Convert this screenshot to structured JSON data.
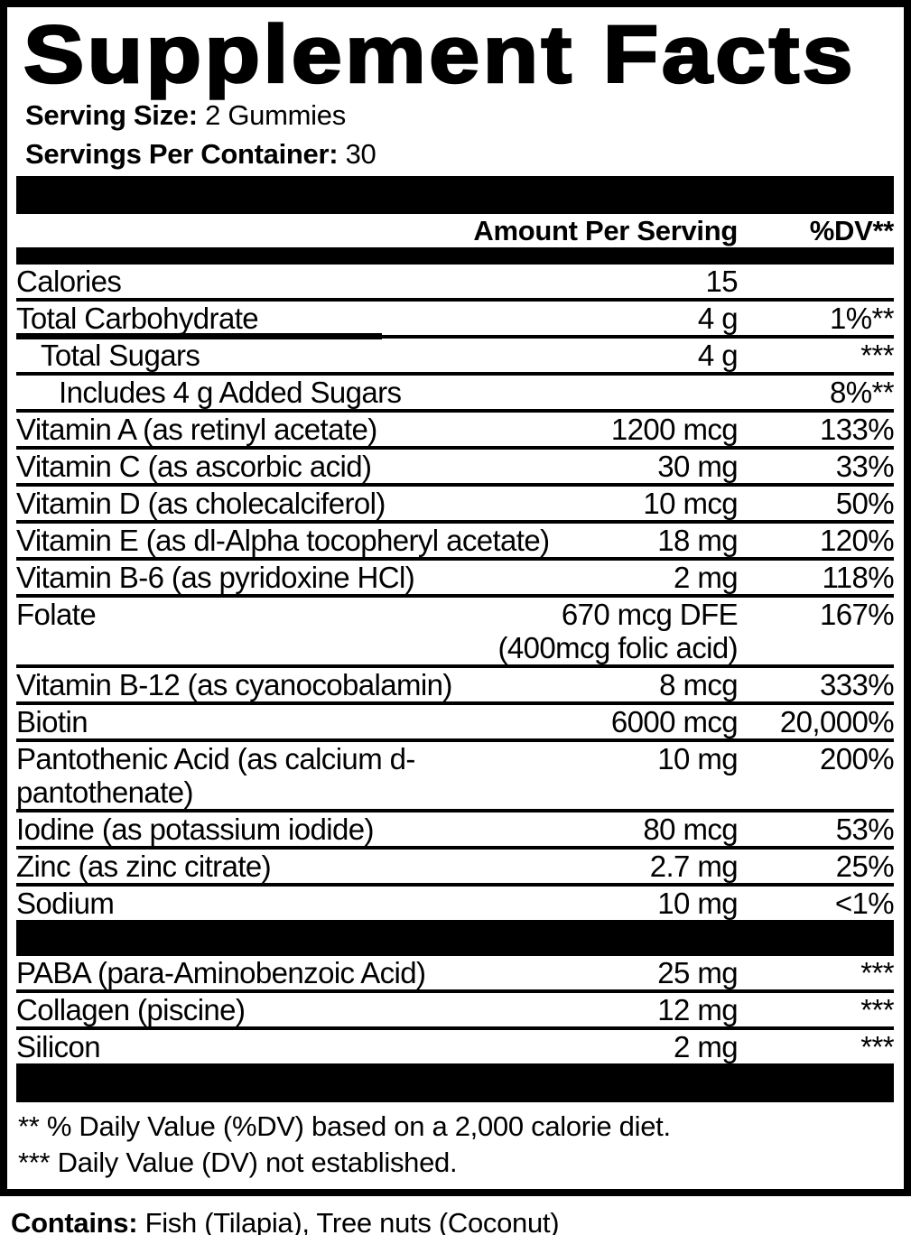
{
  "title": "Supplement Facts",
  "serving": {
    "size_label": "Serving Size:",
    "size_value": "2 Gummies",
    "per_container_label": "Servings Per Container:",
    "per_container_value": "30"
  },
  "columns": {
    "amount_header": "Amount Per Serving",
    "dv_header": "%DV**"
  },
  "nutrient_rows": [
    {
      "label": "Calories",
      "amount": "15",
      "dv": "",
      "indent": 0
    },
    {
      "label": "Total Carbohydrate",
      "amount": "4 g",
      "dv": "1%**",
      "indent": 0,
      "partial_underline": true
    },
    {
      "label": "Total Sugars",
      "amount": "4 g",
      "dv": "***",
      "indent": 1
    },
    {
      "label": "Includes 4 g Added Sugars",
      "amount": "",
      "dv": "8%**",
      "indent": 2
    },
    {
      "label": "Vitamin A (as retinyl acetate)",
      "amount": "1200 mcg",
      "dv": "133%",
      "indent": 0
    },
    {
      "label": "Vitamin C (as ascorbic acid)",
      "amount": "30 mg",
      "dv": "33%",
      "indent": 0
    },
    {
      "label": "Vitamin D (as cholecalciferol)",
      "amount": "10 mcg",
      "dv": "50%",
      "indent": 0
    },
    {
      "label": "Vitamin E (as dl-Alpha tocopheryl acetate)",
      "amount": "18 mg",
      "dv": "120%",
      "indent": 0
    },
    {
      "label": "Vitamin B-6 (as pyridoxine HCl)",
      "amount": "2 mg",
      "dv": "118%",
      "indent": 0
    },
    {
      "label": "Folate",
      "amount": "670 mcg DFE",
      "amount_line2": "(400mcg folic acid)",
      "dv": "167%",
      "indent": 0
    },
    {
      "label": "Vitamin B-12 (as cyanocobalamin)",
      "amount": "8 mcg",
      "dv": "333%",
      "indent": 0
    },
    {
      "label": "Biotin",
      "amount": "6000 mcg",
      "dv": "20,000%",
      "indent": 0
    },
    {
      "label": "Pantothenic Acid (as calcium d-pantothenate)",
      "amount": "10 mg",
      "dv": "200%",
      "indent": 0
    },
    {
      "label": "Iodine (as potassium iodide)",
      "amount": "80 mcg",
      "dv": "53%",
      "indent": 0
    },
    {
      "label": "Zinc (as zinc citrate)",
      "amount": "2.7 mg",
      "dv": "25%",
      "indent": 0
    },
    {
      "label": "Sodium",
      "amount": "10 mg",
      "dv": "<1%",
      "indent": 0
    }
  ],
  "other_rows": [
    {
      "label": "PABA (para-Aminobenzoic Acid)",
      "amount": "25 mg",
      "dv": "***",
      "indent": 0
    },
    {
      "label": "Collagen (piscine)",
      "amount": "12 mg",
      "dv": "***",
      "indent": 0
    },
    {
      "label": "Silicon",
      "amount": "2 mg",
      "dv": "***",
      "indent": 0
    }
  ],
  "footnotes": {
    "line1": "** % Daily Value (%DV) based on a 2,000 calorie diet.",
    "line2": "*** Daily Value (DV) not established."
  },
  "contains": {
    "label": "Contains:",
    "value": "Fish (Tilapia), Tree nuts (Coconut)"
  },
  "colors": {
    "ink": "#000000",
    "background": "#ffffff"
  }
}
